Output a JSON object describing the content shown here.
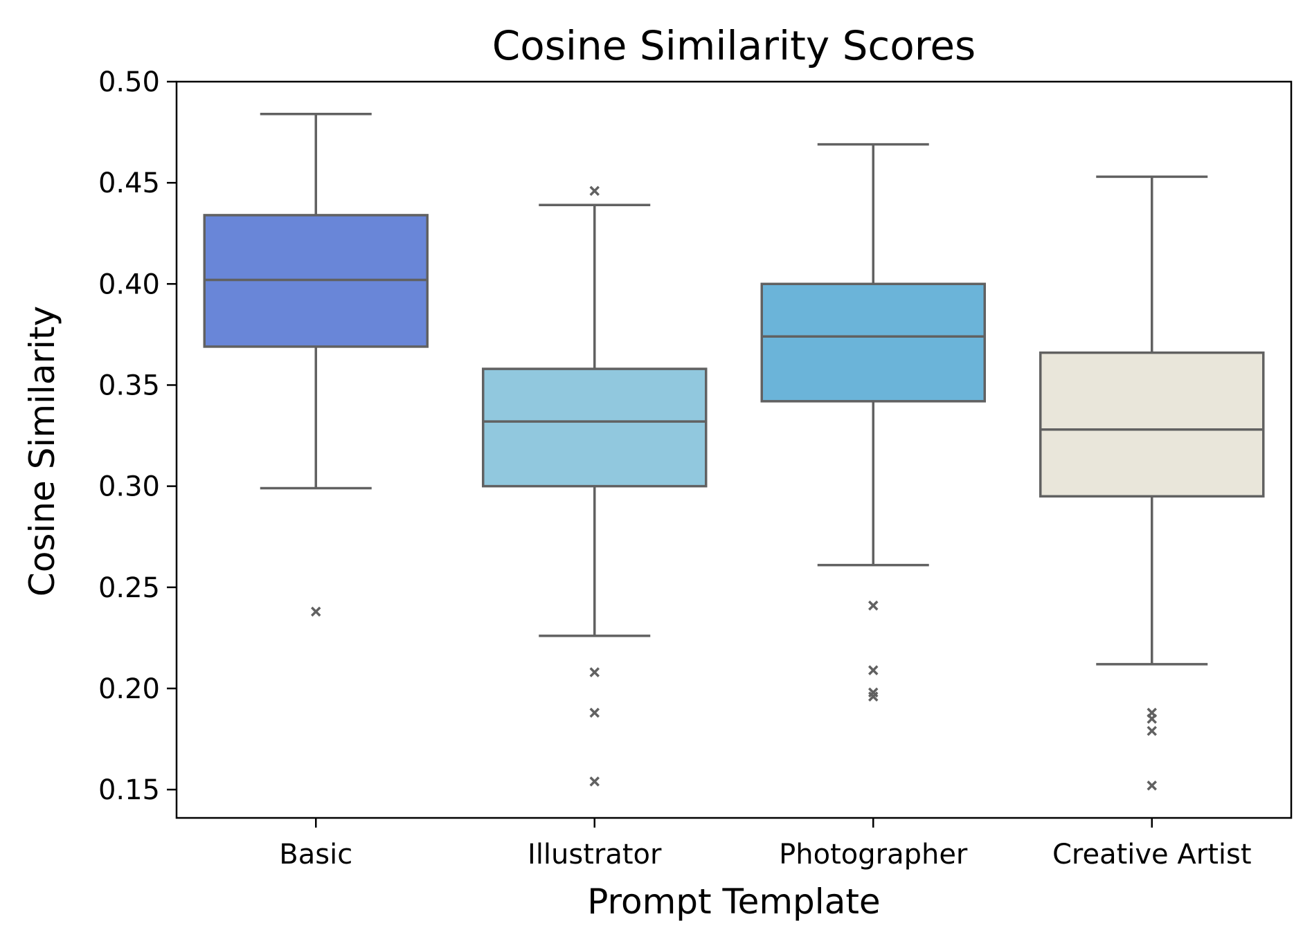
{
  "chart_data": {
    "type": "box",
    "title": "Cosine Similarity Scores",
    "xlabel": "Prompt Template",
    "ylabel": "Cosine Similarity",
    "ylim": [
      0.136,
      0.5
    ],
    "yticks": [
      "0.15",
      "0.20",
      "0.25",
      "0.30",
      "0.35",
      "0.40",
      "0.45",
      "0.50"
    ],
    "grid": false,
    "legend": "none",
    "line_color": "#616161",
    "categories": [
      "Basic",
      "Illustrator",
      "Photographer",
      "Creative Artist"
    ],
    "boxes": [
      {
        "category": "Basic",
        "color": "#6986d8",
        "whisker_low": 0.299,
        "q1": 0.369,
        "median": 0.402,
        "q3": 0.434,
        "whisker_high": 0.484,
        "outliers": [
          0.238
        ]
      },
      {
        "category": "Illustrator",
        "color": "#91c8de",
        "whisker_low": 0.226,
        "q1": 0.3,
        "median": 0.332,
        "q3": 0.358,
        "whisker_high": 0.439,
        "outliers": [
          0.446,
          0.208,
          0.188,
          0.154
        ]
      },
      {
        "category": "Photographer",
        "color": "#6bb4d9",
        "whisker_low": 0.261,
        "q1": 0.342,
        "median": 0.374,
        "q3": 0.4,
        "whisker_high": 0.469,
        "outliers": [
          0.241,
          0.209,
          0.198,
          0.196
        ]
      },
      {
        "category": "Creative Artist",
        "color": "#e9e6da",
        "whisker_low": 0.212,
        "q1": 0.295,
        "median": 0.328,
        "q3": 0.366,
        "whisker_high": 0.453,
        "outliers": [
          0.188,
          0.185,
          0.179,
          0.152
        ]
      }
    ]
  }
}
